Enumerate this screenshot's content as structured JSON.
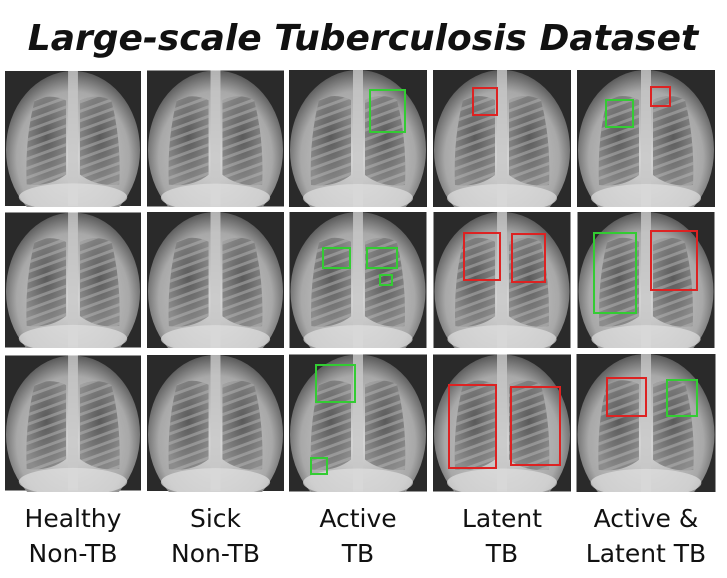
{
  "title": "Large-scale Tuberculosis Dataset",
  "columns": [
    {
      "label": [
        "Healthy",
        "Non-TB"
      ]
    },
    {
      "label": [
        "Sick",
        "Non-TB"
      ]
    },
    {
      "label": [
        "Active",
        "TB"
      ]
    },
    {
      "label": [
        "Latent",
        "TB"
      ]
    },
    {
      "label": [
        "Active &",
        "Latent TB"
      ]
    }
  ]
}
